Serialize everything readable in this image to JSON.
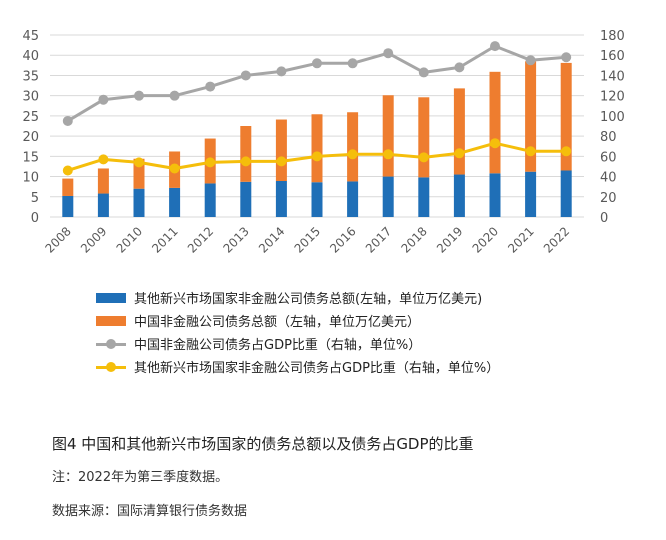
{
  "chart_data": {
    "type": "bar",
    "categories": [
      "2008",
      "2009",
      "2010",
      "2011",
      "2012",
      "2013",
      "2014",
      "2015",
      "2016",
      "2017",
      "2018",
      "2019",
      "2020",
      "2021",
      "2022"
    ],
    "left_axis": {
      "ylim": [
        0,
        45
      ],
      "ticks": [
        0,
        5,
        10,
        15,
        20,
        25,
        30,
        35,
        40,
        45
      ]
    },
    "right_axis": {
      "ylim": [
        0,
        180
      ],
      "ticks": [
        0,
        20,
        40,
        60,
        80,
        100,
        120,
        140,
        160,
        180
      ]
    },
    "series": [
      {
        "name": "其他新兴市场国家非金融公司债务总额(左轴，单位万亿美元)",
        "type": "bar",
        "stack": true,
        "axis": "left",
        "color": "#1f6fb7",
        "values": [
          5.2,
          5.8,
          7.0,
          7.2,
          8.3,
          8.7,
          8.9,
          8.6,
          8.8,
          10.0,
          9.8,
          10.5,
          10.8,
          11.2,
          11.5
        ]
      },
      {
        "name": "中国非金融公司债务总额（左轴，单位万亿美元）",
        "type": "bar",
        "stack": true,
        "axis": "left",
        "color": "#ee7d2f",
        "values": [
          4.3,
          6.2,
          7.4,
          9.0,
          11.1,
          13.8,
          15.2,
          16.8,
          17.1,
          20.1,
          19.8,
          21.3,
          25.1,
          27.3,
          26.6
        ]
      },
      {
        "name": "中国非金融公司债务占GDP比重（右轴，单位%）",
        "type": "line",
        "axis": "right",
        "color": "#a6a6a6",
        "values": [
          95,
          116,
          120,
          120,
          129,
          140,
          144,
          152,
          152,
          162,
          143,
          148,
          169,
          155,
          158
        ]
      },
      {
        "name": "其他新兴市场国家非金融公司债务占GDP比重（右轴，单位%）",
        "type": "line",
        "axis": "right",
        "color": "#f5be0b",
        "values": [
          46,
          57,
          54,
          48,
          54,
          55,
          55,
          60,
          62,
          62,
          59,
          63,
          73,
          65,
          65
        ]
      }
    ]
  },
  "caption": "图4  中国和其他新兴市场国家的债务总额以及债务占GDP的比重",
  "note": "注：2022年为第三季度数据。",
  "source": "数据来源：国际清算银行债务数据"
}
